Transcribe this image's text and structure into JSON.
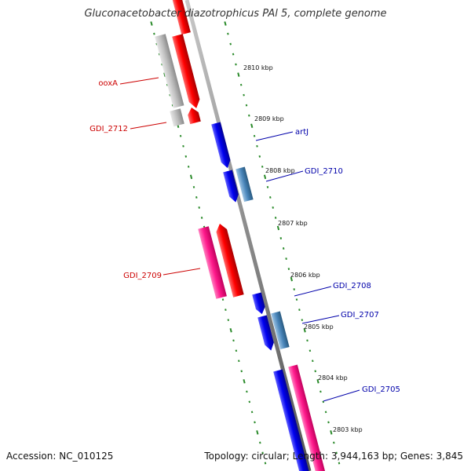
{
  "title": "Gluconacetobacter diazotrophicus PAl 5, complete genome",
  "accession": "Accession: NC_010125",
  "topology": "Topology: circular; Length: 3,944,163 bp; Genes: 3,845",
  "kbp_labels": [
    "2810 kbp",
    "2809 kbp",
    "2808 kbp",
    "2807 kbp",
    "2806 kbp",
    "2805 kbp",
    "2804 kbp",
    "2803 kbp"
  ],
  "gene_labels": {
    "ooxA": "ooxA",
    "gdi2712": "GDI_2712",
    "artJ": "artJ",
    "gdi2710": "GDI_2710",
    "gdi2709": "GDI_2709",
    "gdi2708": "GDI_2708",
    "gdi2707": "GDI_2707",
    "gdi2705": "GDI_2705"
  },
  "colors": {
    "reverse_label": "#cc0000",
    "forward_label": "#0000aa",
    "backbone": "#888888",
    "tick": "#2a8a2a"
  }
}
